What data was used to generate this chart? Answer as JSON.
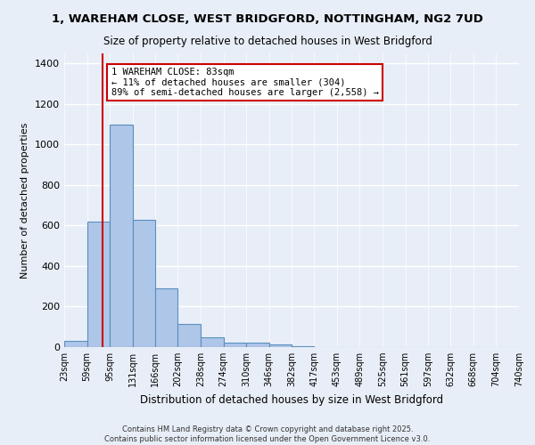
{
  "title1": "1, WAREHAM CLOSE, WEST BRIDGFORD, NOTTINGHAM, NG2 7UD",
  "title2": "Size of property relative to detached houses in West Bridgford",
  "xlabel": "Distribution of detached houses by size in West Bridgford",
  "ylabel": "Number of detached properties",
  "bins": [
    23,
    59,
    95,
    131,
    166,
    202,
    238,
    274,
    310,
    346,
    382,
    417,
    453,
    489,
    525,
    561,
    597,
    632,
    668,
    704,
    740
  ],
  "counts": [
    30,
    620,
    1100,
    630,
    290,
    115,
    50,
    20,
    20,
    15,
    5,
    0,
    0,
    0,
    0,
    0,
    0,
    0,
    0,
    0
  ],
  "bar_color": "#aec6e8",
  "bar_edge_color": "#5a8fc0",
  "property_size": 83,
  "vline_color": "#cc0000",
  "annotation_text": "1 WAREHAM CLOSE: 83sqm\n← 11% of detached houses are smaller (304)\n89% of semi-detached houses are larger (2,558) →",
  "annotation_box_color": "#ffffff",
  "annotation_box_edge": "#cc0000",
  "ylim": [
    0,
    1450
  ],
  "yticks": [
    0,
    200,
    400,
    600,
    800,
    1000,
    1200,
    1400
  ],
  "bg_color": "#e8eef7",
  "grid_color": "#ffffff",
  "footer1": "Contains HM Land Registry data © Crown copyright and database right 2025.",
  "footer2": "Contains public sector information licensed under the Open Government Licence v3.0."
}
